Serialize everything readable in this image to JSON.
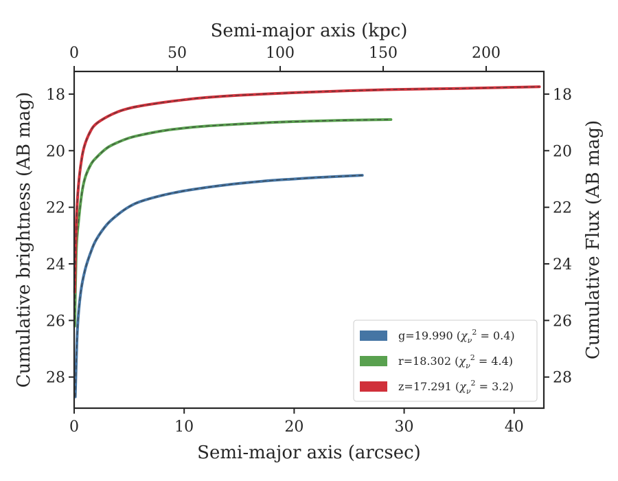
{
  "chart_data": {
    "type": "line",
    "title": "",
    "xlabel": "Semi-major axis (arcsec)",
    "ylabel": "Cumulative brightness (AB mag)",
    "x2label": "Semi-major axis (kpc)",
    "y2label": "Cumulative Flux (AB mag)",
    "xlim": [
      0,
      42.7
    ],
    "ylim": [
      29.1,
      17.2
    ],
    "x2lim": [
      0,
      228
    ],
    "xticks": [
      0,
      10,
      20,
      30,
      40
    ],
    "yticks": [
      18,
      20,
      22,
      24,
      26,
      28
    ],
    "x2ticks": [
      0,
      50,
      100,
      150,
      200
    ],
    "y_inverted": true,
    "grid": false,
    "legend_position": "bottom-right",
    "series": [
      {
        "name": "g=19.990",
        "chi2_value": "0.4",
        "color": "#4575a4",
        "x": [
          0.1,
          0.3,
          0.6,
          1.0,
          1.5,
          2.0,
          3.0,
          4.0,
          5.0,
          6.0,
          8.0,
          10.0,
          12.0,
          14.0,
          16.0,
          18.0,
          20.0,
          22.0,
          24.0,
          26.2
        ],
        "y": [
          28.7,
          26.3,
          25.0,
          24.2,
          23.6,
          23.15,
          22.6,
          22.25,
          21.98,
          21.8,
          21.58,
          21.42,
          21.3,
          21.2,
          21.12,
          21.05,
          21.0,
          20.95,
          20.91,
          20.87
        ]
      },
      {
        "name": "r=18.302",
        "chi2_value": "4.4",
        "color": "#59a14f",
        "x": [
          0.05,
          0.2,
          0.4,
          0.7,
          1.0,
          1.5,
          2.0,
          3.0,
          4.0,
          5.0,
          6.0,
          8.0,
          10.0,
          12.0,
          15.0,
          18.0,
          21.0,
          24.0,
          27.0,
          28.8
        ],
        "y": [
          26.2,
          23.5,
          22.5,
          21.5,
          20.95,
          20.5,
          20.25,
          19.9,
          19.7,
          19.55,
          19.45,
          19.3,
          19.2,
          19.13,
          19.06,
          19.0,
          18.96,
          18.93,
          18.91,
          18.9
        ]
      },
      {
        "name": "z=17.291",
        "chi2_value": "3.2",
        "color": "#d0303a",
        "x": [
          0.05,
          0.2,
          0.4,
          0.7,
          1.0,
          1.5,
          2.0,
          3.0,
          4.0,
          5.0,
          6.0,
          8.0,
          10.0,
          12.0,
          15.0,
          20.0,
          25.0,
          30.0,
          35.0,
          40.0,
          42.3
        ],
        "y": [
          25.0,
          22.5,
          21.2,
          20.25,
          19.75,
          19.3,
          19.05,
          18.8,
          18.62,
          18.5,
          18.42,
          18.3,
          18.2,
          18.12,
          18.04,
          17.95,
          17.88,
          17.83,
          17.8,
          17.76,
          17.74
        ]
      }
    ]
  }
}
